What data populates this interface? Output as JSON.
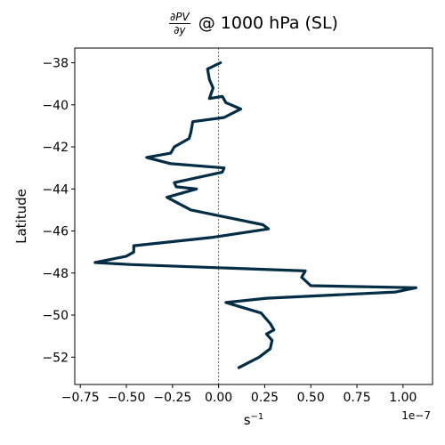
{
  "chart_data": {
    "type": "line",
    "title_numerator": "∂PV",
    "title_denominator": "∂y",
    "title_suffix": "@ 1000 hPa (SL)",
    "xlabel_base": "s",
    "xlabel_exp": "−1",
    "ylabel": "Latitude",
    "x_offset_text": "1e−7",
    "xlim": [
      -0.78,
      1.16
    ],
    "ylim": [
      -53.3,
      -37.3
    ],
    "x_ticks": [
      -0.75,
      -0.5,
      -0.25,
      0.0,
      0.25,
      0.5,
      0.75,
      1.0
    ],
    "x_tick_labels": [
      "−0.75",
      "−0.50",
      "−0.25",
      "0.00",
      "0.25",
      "0.50",
      "0.75",
      "1.00"
    ],
    "y_ticks": [
      -38,
      -40,
      -42,
      -44,
      -46,
      -48,
      -50,
      -52
    ],
    "y_tick_labels": [
      "−38",
      "−40",
      "−42",
      "−44",
      "−46",
      "−48",
      "−50",
      "−52"
    ],
    "reference_line_x": 0.0,
    "line_color": "#022d45",
    "reference_color": "#d62728",
    "x": [
      0.01,
      -0.06,
      -0.05,
      -0.03,
      -0.05,
      0.02,
      0.04,
      0.12,
      0.03,
      -0.14,
      -0.15,
      -0.16,
      -0.24,
      -0.26,
      -0.39,
      -0.26,
      0.03,
      0.02,
      -0.24,
      -0.23,
      -0.12,
      -0.28,
      -0.15,
      0.24,
      0.27,
      -0.03,
      -0.46,
      -0.46,
      -0.5,
      -0.67,
      -0.47,
      0.47,
      0.45,
      0.5,
      1.07,
      0.96,
      0.26,
      0.04,
      0.23,
      0.28,
      0.3,
      0.26,
      0.29,
      0.28,
      0.22,
      0.11
    ],
    "y": [
      -38.0,
      -38.3,
      -38.8,
      -39.2,
      -39.7,
      -39.6,
      -39.9,
      -40.2,
      -40.6,
      -40.8,
      -41.3,
      -41.6,
      -42.0,
      -42.3,
      -42.5,
      -42.8,
      -43.0,
      -43.2,
      -43.7,
      -43.9,
      -44.0,
      -44.4,
      -45.0,
      -45.7,
      -45.9,
      -46.3,
      -46.7,
      -47.0,
      -47.2,
      -47.5,
      -47.6,
      -47.9,
      -48.2,
      -48.6,
      -48.7,
      -48.9,
      -49.2,
      -49.4,
      -49.9,
      -50.4,
      -50.7,
      -50.9,
      -51.2,
      -51.6,
      -52.0,
      -52.5
    ]
  }
}
